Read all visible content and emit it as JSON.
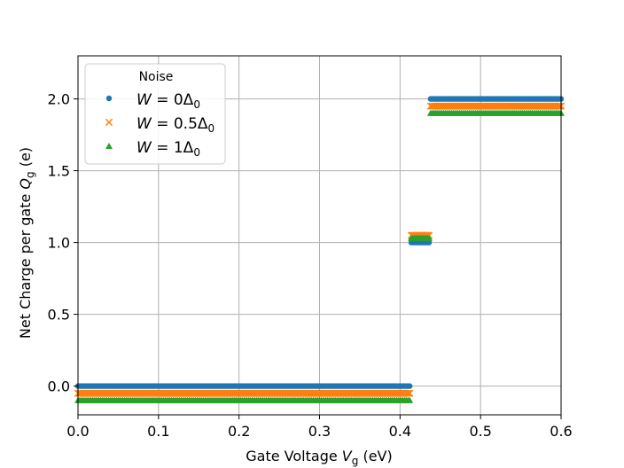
{
  "chart_data": {
    "type": "scatter",
    "xlabel_main": "Gate Voltage ",
    "xlabel_var": "V",
    "xlabel_sub": "g",
    "xlabel_unit": " (eV)",
    "ylabel_main": "Net Charge per gate ",
    "ylabel_var": "Q",
    "ylabel_sub": "g",
    "ylabel_unit": " (e)",
    "xlim": [
      0.0,
      0.6
    ],
    "ylim": [
      -0.2,
      2.3
    ],
    "xticks": [
      "0.0",
      "0.1",
      "0.2",
      "0.3",
      "0.4",
      "0.5",
      "0.6"
    ],
    "yticks": [
      "0.0",
      "0.5",
      "1.0",
      "1.5",
      "2.0"
    ],
    "grid": true,
    "legend": {
      "placement": "upper-left",
      "title": "Noise",
      "entries": [
        {
          "prefix": "W = 0Δ",
          "sub": "0"
        },
        {
          "prefix": "W = 0.5Δ",
          "sub": "0"
        },
        {
          "prefix": "W = 1Δ",
          "sub": "0"
        }
      ]
    },
    "point_step": 0.002,
    "series": [
      {
        "marker": "circle",
        "color": "#1f77b4",
        "segments": [
          {
            "x_start": 0.0,
            "x_end": 0.412,
            "y": 0.0
          },
          {
            "x_start": 0.414,
            "x_end": 0.436,
            "y": 1.0
          },
          {
            "x_start": 0.438,
            "x_end": 0.6,
            "y": 2.0
          }
        ]
      },
      {
        "marker": "x",
        "color": "#ff7f0e",
        "segments": [
          {
            "x_start": 0.0,
            "x_end": 0.412,
            "y": -0.05
          },
          {
            "x_start": 0.414,
            "x_end": 0.436,
            "y": 1.05
          },
          {
            "x_start": 0.438,
            "x_end": 0.6,
            "y": 1.95
          }
        ]
      },
      {
        "marker": "triangle",
        "color": "#2ca02c",
        "segments": [
          {
            "x_start": 0.0,
            "x_end": 0.412,
            "y": -0.1
          },
          {
            "x_start": 0.414,
            "x_end": 0.436,
            "y": 1.03
          },
          {
            "x_start": 0.438,
            "x_end": 0.6,
            "y": 1.9
          }
        ]
      }
    ]
  }
}
